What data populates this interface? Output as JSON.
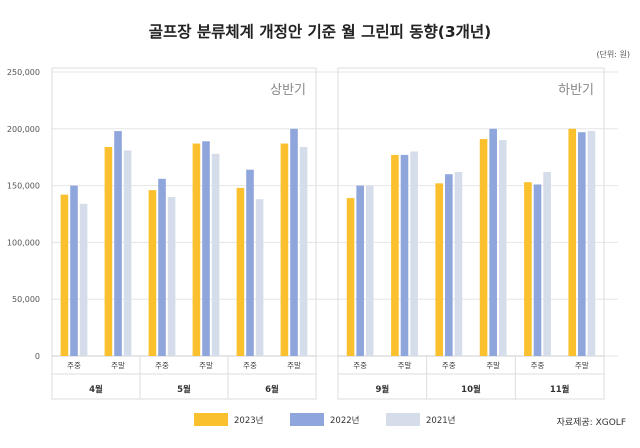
{
  "title": "골프장 분류체계 개정안 기준 월 그린피 동향(3개년)",
  "unit_label": "(단위: 원)",
  "source": "자료제공: XGOLF",
  "colors": {
    "2023년": "#FBC02D",
    "2022년": "#8FA6DC",
    "2021년": "#D5DDEA"
  },
  "chart_data": {
    "type": "bar",
    "title": "골프장 분류체계 개정안 기준 월 그린피 동향(3개년)",
    "ylim": [
      0,
      250000
    ],
    "yticks": [
      "0",
      "50,000",
      "100,000",
      "150,000",
      "200,000",
      "250,000"
    ],
    "grid": true,
    "legend_position": "bottom",
    "series_names": [
      "2023년",
      "2022년",
      "2021년"
    ],
    "panels": [
      {
        "label": "상반기",
        "months": [
          {
            "month": "4월",
            "groups": [
              {
                "category": "주중",
                "values": [
                  142000,
                  150000,
                  134000
                ]
              },
              {
                "category": "주말",
                "values": [
                  184000,
                  198000,
                  181000
                ]
              }
            ]
          },
          {
            "month": "5월",
            "groups": [
              {
                "category": "주중",
                "values": [
                  146000,
                  156000,
                  140000
                ]
              },
              {
                "category": "주말",
                "values": [
                  187000,
                  189000,
                  178000
                ]
              }
            ]
          },
          {
            "month": "6월",
            "groups": [
              {
                "category": "주중",
                "values": [
                  148000,
                  164000,
                  138000
                ]
              },
              {
                "category": "주말",
                "values": [
                  187000,
                  200000,
                  184000
                ]
              }
            ]
          }
        ]
      },
      {
        "label": "하반기",
        "months": [
          {
            "month": "9월",
            "groups": [
              {
                "category": "주중",
                "values": [
                  139000,
                  150000,
                  150000
                ]
              },
              {
                "category": "주말",
                "values": [
                  177000,
                  177000,
                  180000
                ]
              }
            ]
          },
          {
            "month": "10월",
            "groups": [
              {
                "category": "주중",
                "values": [
                  152000,
                  160000,
                  162000
                ]
              },
              {
                "category": "주말",
                "values": [
                  191000,
                  200000,
                  190000
                ]
              }
            ]
          },
          {
            "month": "11월",
            "groups": [
              {
                "category": "주중",
                "values": [
                  153000,
                  151000,
                  162000
                ]
              },
              {
                "category": "주말",
                "values": [
                  200000,
                  197000,
                  198000
                ]
              }
            ]
          }
        ]
      }
    ]
  }
}
